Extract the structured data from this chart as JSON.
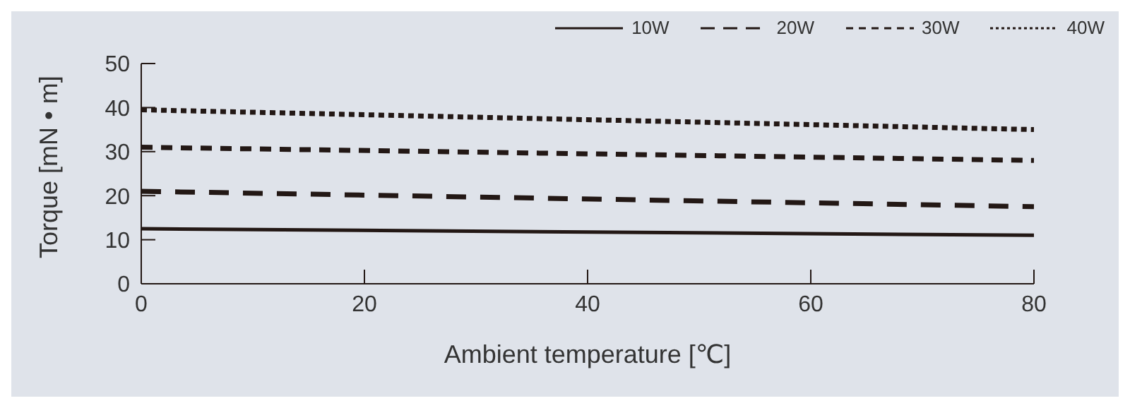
{
  "chart_data": {
    "type": "line",
    "xlabel": "Ambient temperature [℃]",
    "ylabel": "Torque [mN • m]",
    "x": [
      0,
      80
    ],
    "xlim": [
      0,
      80
    ],
    "xticks": [
      0,
      20,
      40,
      60,
      80
    ],
    "ylim": [
      0,
      50
    ],
    "yticks": [
      0,
      10,
      20,
      30,
      40,
      50
    ],
    "grid": false,
    "legend": "top right",
    "marker": "none",
    "series": [
      {
        "name": "10W",
        "color": "#231815",
        "line_style": "solid",
        "values": [
          12.5,
          11
        ]
      },
      {
        "name": "20W",
        "color": "#231815",
        "line_style": "long-dashed",
        "values": [
          21,
          17.5
        ]
      },
      {
        "name": "30W",
        "color": "#231815",
        "line_style": "dashed",
        "values": [
          31,
          28
        ]
      },
      {
        "name": "40W",
        "color": "#231815",
        "line_style": "dotted",
        "values": [
          39.5,
          35
        ]
      }
    ]
  }
}
